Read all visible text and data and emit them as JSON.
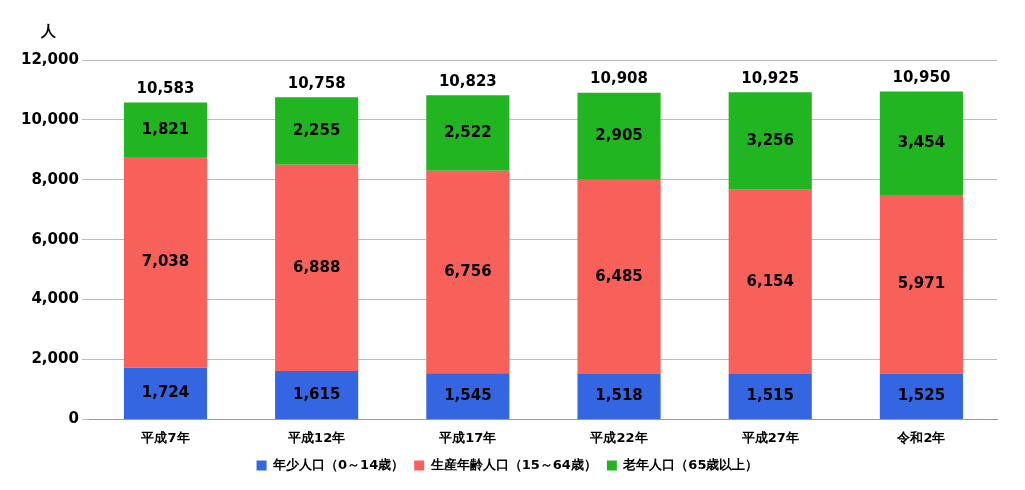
{
  "chart_data": {
    "type": "bar",
    "stacked": true,
    "ylabel": "人",
    "categories": [
      "平成7年",
      "平成12年",
      "平成17年",
      "平成22年",
      "平成27年",
      "令和2年"
    ],
    "series": [
      {
        "name": "年少人口（0～14歳）",
        "color": "#3366e0",
        "values": [
          1724,
          1615,
          1545,
          1518,
          1515,
          1525
        ],
        "value_labels": [
          "1,724",
          "1,615",
          "1,545",
          "1,518",
          "1,515",
          "1,525"
        ]
      },
      {
        "name": "生産年齢人口（15～64歳）",
        "color": "#f8605a",
        "values": [
          7038,
          6888,
          6756,
          6485,
          6154,
          5971
        ],
        "value_labels": [
          "7,038",
          "6,888",
          "6,756",
          "6,485",
          "6,154",
          "5,971"
        ]
      },
      {
        "name": "老年人口（65歳以上）",
        "color": "#22b522",
        "values": [
          1821,
          2255,
          2522,
          2905,
          3256,
          3454
        ],
        "value_labels": [
          "1,821",
          "2,255",
          "2,522",
          "2,905",
          "3,256",
          "3,454"
        ]
      }
    ],
    "totals": [
      "10,583",
      "10,758",
      "10,823",
      "10,908",
      "10,925",
      "10,950"
    ],
    "ylim": [
      0,
      12000
    ],
    "yticks": [
      0,
      {
        "value": 2000,
        "label": "2,000"
      },
      {
        "value": 4000,
        "label": "4,000"
      },
      {
        "value": 6000,
        "label": "6,000"
      },
      {
        "value": 8000,
        "label": "8,000"
      },
      {
        "value": 10000,
        "label": "10,000"
      },
      {
        "value": 12000,
        "label": "12,000"
      }
    ],
    "grid": "y",
    "legend": "bottom"
  }
}
